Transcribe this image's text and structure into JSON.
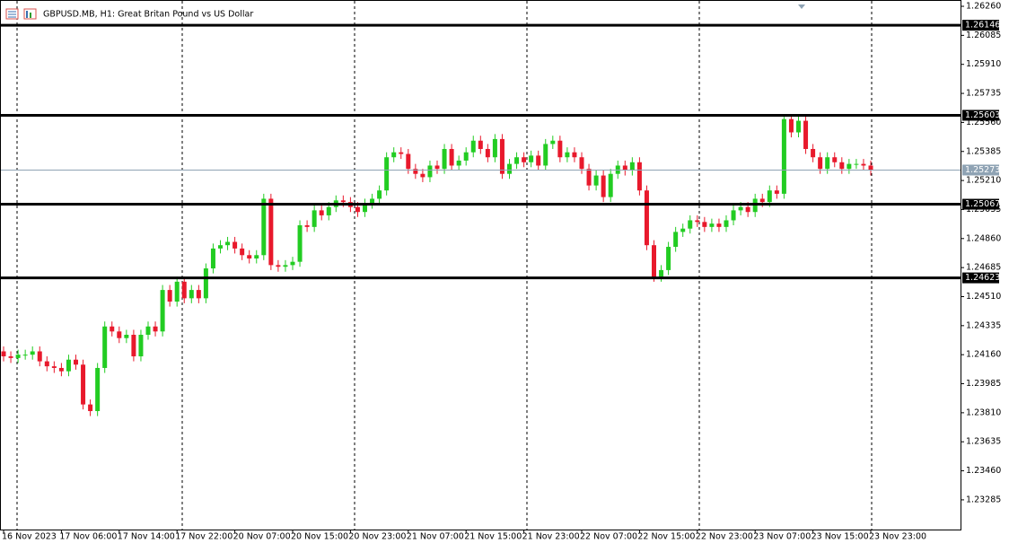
{
  "chart_data": {
    "type": "candlestick",
    "title": "GBPUSD.MB, H1:  Great Britan Pound vs US Dollar",
    "categories": [
      "16 Nov 2023",
      null,
      null,
      null,
      null,
      null,
      null,
      null,
      "17 Nov 06:00",
      null,
      null,
      null,
      null,
      null,
      null,
      null,
      "17 Nov 14:00",
      null,
      null,
      null,
      null,
      null,
      null,
      null,
      "17 Nov 22:00",
      null,
      null,
      null,
      null,
      null,
      null,
      null,
      "20 Nov 07:00",
      null,
      null,
      null,
      null,
      null,
      null,
      null,
      "20 Nov 15:00",
      null,
      null,
      null,
      null,
      null,
      null,
      null,
      "20 Nov 23:00",
      null,
      null,
      null,
      null,
      null,
      null,
      null,
      "21 Nov 07:00",
      null,
      null,
      null,
      null,
      null,
      null,
      null,
      "21 Nov 15:00",
      null,
      null,
      null,
      null,
      null,
      null,
      null,
      "21 Nov 23:00",
      null,
      null,
      null,
      null,
      null,
      null,
      null,
      "22 Nov 07:00",
      null,
      null,
      null,
      null,
      null,
      null,
      null,
      "22 Nov 15:00",
      null,
      null,
      null,
      null,
      null,
      null,
      null,
      "22 Nov 23:00",
      null,
      null,
      null,
      null,
      null,
      null,
      null,
      "23 Nov 07:00",
      null,
      null,
      null,
      null,
      null,
      null,
      null,
      "23 Nov 15:00",
      null,
      null,
      null,
      null,
      null,
      null,
      null,
      "23 Nov 23:00"
    ],
    "open": [
      1.2418,
      1.2415,
      1.2414,
      1.2416,
      1.2416,
      1.2418,
      1.2412,
      1.2409,
      1.2408,
      1.2406,
      1.2413,
      1.241,
      1.2386,
      1.2382,
      1.2408,
      1.2433,
      1.243,
      1.2426,
      1.2428,
      1.2415,
      1.2428,
      1.2433,
      1.243,
      1.2455,
      1.2448,
      1.246,
      1.245,
      1.2455,
      1.245,
      1.2468,
      1.248,
      1.2482,
      1.2484,
      1.248,
      1.2476,
      1.2474,
      1.2476,
      1.251,
      1.247,
      1.2469,
      1.247,
      1.2472,
      1.2494,
      1.2493,
      1.2503,
      1.25,
      1.2505,
      1.2509,
      1.2508,
      1.2505,
      1.2502,
      1.2507,
      1.251,
      1.2515,
      1.2535,
      1.2538,
      1.2537,
      1.2528,
      1.2525,
      1.2523,
      1.253,
      1.2528,
      1.254,
      1.253,
      1.2533,
      1.2538,
      1.2545,
      1.254,
      1.2535,
      1.2546,
      1.2525,
      1.2531,
      1.2535,
      1.2532,
      1.2536,
      1.253,
      1.2543,
      1.2545,
      1.2535,
      1.2538,
      1.2535,
      1.2528,
      1.2518,
      1.2524,
      1.2511,
      1.2525,
      1.253,
      1.2527,
      1.2532,
      1.2515,
      1.2482,
      1.2463,
      1.2467,
      1.2481,
      1.249,
      1.2492,
      1.2497,
      1.2496,
      1.2493,
      1.2495,
      1.2493,
      1.2497,
      1.2503,
      1.2505,
      1.2502,
      1.251,
      1.2508,
      1.2515,
      1.2513,
      1.2558,
      1.255,
      1.2557,
      1.254,
      1.2535,
      1.2528,
      1.2535,
      1.2532,
      1.2528,
      1.2531,
      1.2531,
      1.253
    ],
    "high": [
      1.2421,
      1.2418,
      1.2419,
      1.2419,
      1.2421,
      1.2421,
      1.2415,
      1.2412,
      1.2411,
      1.2416,
      1.2416,
      1.2413,
      1.2389,
      1.2411,
      1.2436,
      1.2436,
      1.2433,
      1.2431,
      1.2431,
      1.2431,
      1.2436,
      1.2436,
      1.2458,
      1.2458,
      1.2463,
      1.2463,
      1.2458,
      1.2458,
      1.2471,
      1.2483,
      1.2485,
      1.2487,
      1.2487,
      1.2483,
      1.2479,
      1.2479,
      1.2513,
      1.2513,
      1.2473,
      1.2473,
      1.2475,
      1.2497,
      1.2497,
      1.2506,
      1.2506,
      1.2508,
      1.2512,
      1.2512,
      1.2511,
      1.2508,
      1.251,
      1.2513,
      1.2518,
      1.2538,
      1.2541,
      1.2541,
      1.254,
      1.2531,
      1.2528,
      1.2533,
      1.2533,
      1.2543,
      1.2543,
      1.2536,
      1.2541,
      1.2548,
      1.2548,
      1.2543,
      1.2549,
      1.2549,
      1.2534,
      1.2538,
      1.2538,
      1.2539,
      1.2539,
      1.2546,
      1.2548,
      1.2548,
      1.2541,
      1.2541,
      1.2538,
      1.2531,
      1.2527,
      1.2527,
      1.2528,
      1.2533,
      1.2533,
      1.2535,
      1.2535,
      1.2518,
      1.2485,
      1.247,
      1.2484,
      1.2493,
      1.2495,
      1.25,
      1.25,
      1.2499,
      1.2498,
      1.2498,
      1.25,
      1.2506,
      1.2508,
      1.2508,
      1.2513,
      1.2513,
      1.2518,
      1.2518,
      1.2561,
      1.2561,
      1.256,
      1.256,
      1.2543,
      1.2538,
      1.2538,
      1.2538,
      1.2535,
      1.2534,
      1.2534,
      1.2534,
      1.2533
    ],
    "low": [
      1.2412,
      1.2411,
      1.2411,
      1.2413,
      1.2413,
      1.2409,
      1.2406,
      1.2405,
      1.2403,
      1.2403,
      1.2407,
      1.2383,
      1.2379,
      1.2379,
      1.2405,
      1.2427,
      1.2423,
      1.2423,
      1.2412,
      1.2412,
      1.2425,
      1.2427,
      1.2427,
      1.2445,
      1.2445,
      1.2447,
      1.2447,
      1.2447,
      1.2447,
      1.2465,
      1.2477,
      1.2479,
      1.2477,
      1.2473,
      1.2471,
      1.2471,
      1.2473,
      1.2467,
      1.2466,
      1.2466,
      1.2467,
      1.2469,
      1.249,
      1.249,
      1.2497,
      1.2497,
      1.2502,
      1.2505,
      1.2502,
      1.2499,
      1.2499,
      1.2504,
      1.2507,
      1.2512,
      1.2532,
      1.2534,
      1.2525,
      1.2522,
      1.252,
      1.252,
      1.2525,
      1.2525,
      1.2527,
      1.2527,
      1.253,
      1.2535,
      1.2537,
      1.2532,
      1.2532,
      1.2522,
      1.2522,
      1.2528,
      1.2529,
      1.2529,
      1.2527,
      1.2527,
      1.254,
      1.2532,
      1.2532,
      1.2532,
      1.2525,
      1.2515,
      1.2515,
      1.2508,
      1.2508,
      1.2522,
      1.2524,
      1.2524,
      1.2512,
      1.2479,
      1.246,
      1.246,
      1.2464,
      1.2478,
      1.2487,
      1.2489,
      1.2493,
      1.249,
      1.249,
      1.249,
      1.249,
      1.2494,
      1.25,
      1.2499,
      1.2499,
      1.2505,
      1.2505,
      1.251,
      1.251,
      1.2547,
      1.2547,
      1.2537,
      1.2532,
      1.2525,
      1.2525,
      1.2529,
      1.2525,
      1.2525,
      1.2528,
      1.2527,
      1.2524
    ],
    "close": [
      1.2415,
      1.2414,
      1.2416,
      1.2416,
      1.2418,
      1.2412,
      1.2409,
      1.2408,
      1.2406,
      1.2413,
      1.241,
      1.2386,
      1.2382,
      1.2408,
      1.2433,
      1.243,
      1.2426,
      1.2428,
      1.2415,
      1.2428,
      1.2433,
      1.243,
      1.2455,
      1.2448,
      1.246,
      1.245,
      1.2455,
      1.245,
      1.2468,
      1.248,
      1.2482,
      1.2484,
      1.248,
      1.2476,
      1.2474,
      1.2476,
      1.251,
      1.247,
      1.2469,
      1.247,
      1.2472,
      1.2494,
      1.2493,
      1.2503,
      1.25,
      1.2505,
      1.2509,
      1.2508,
      1.2505,
      1.2502,
      1.2507,
      1.251,
      1.2515,
      1.2535,
      1.2538,
      1.2537,
      1.2528,
      1.2525,
      1.2523,
      1.253,
      1.2528,
      1.254,
      1.253,
      1.2533,
      1.2538,
      1.2545,
      1.254,
      1.2535,
      1.2546,
      1.2525,
      1.2531,
      1.2535,
      1.2532,
      1.2536,
      1.253,
      1.2543,
      1.2545,
      1.2535,
      1.2538,
      1.2535,
      1.2528,
      1.2518,
      1.2524,
      1.2511,
      1.2525,
      1.253,
      1.2527,
      1.2532,
      1.2515,
      1.2482,
      1.2463,
      1.2467,
      1.2481,
      1.249,
      1.2492,
      1.2497,
      1.2496,
      1.2493,
      1.2495,
      1.2493,
      1.2497,
      1.2503,
      1.2505,
      1.2502,
      1.251,
      1.2508,
      1.2515,
      1.2513,
      1.2558,
      1.255,
      1.2557,
      1.254,
      1.2535,
      1.2528,
      1.2535,
      1.2532,
      1.2528,
      1.2531,
      1.2531,
      1.253,
      1.2527
    ],
    "up_color": "#22cc22",
    "down_color": "#e8192c",
    "levels": [
      1.26146,
      1.25603,
      1.25067,
      1.24623
    ],
    "level_color": "#000000",
    "bid": 1.25273,
    "bid_color": "#8fa3b4",
    "ylim": [
      1.23106,
      1.26298
    ],
    "yticks": [
      {
        "value": 1.2626,
        "label": "1.26260"
      },
      1.26085,
      {
        "value": 1.2591,
        "label": "1.25910"
      },
      1.25735,
      {
        "value": 1.2556,
        "label": "1.25560"
      },
      1.25385,
      {
        "value": 1.2521,
        "label": "1.25210"
      },
      1.25035,
      {
        "value": 1.2486,
        "label": "1.24860"
      },
      1.24685,
      {
        "value": 1.2451,
        "label": "1.24510"
      },
      1.24335,
      {
        "value": 1.2416,
        "label": "1.24160"
      },
      1.23985,
      {
        "value": 1.2381,
        "label": "1.23810"
      },
      1.23635,
      {
        "value": 1.2346,
        "label": "1.23460"
      },
      1.23285
    ]
  }
}
